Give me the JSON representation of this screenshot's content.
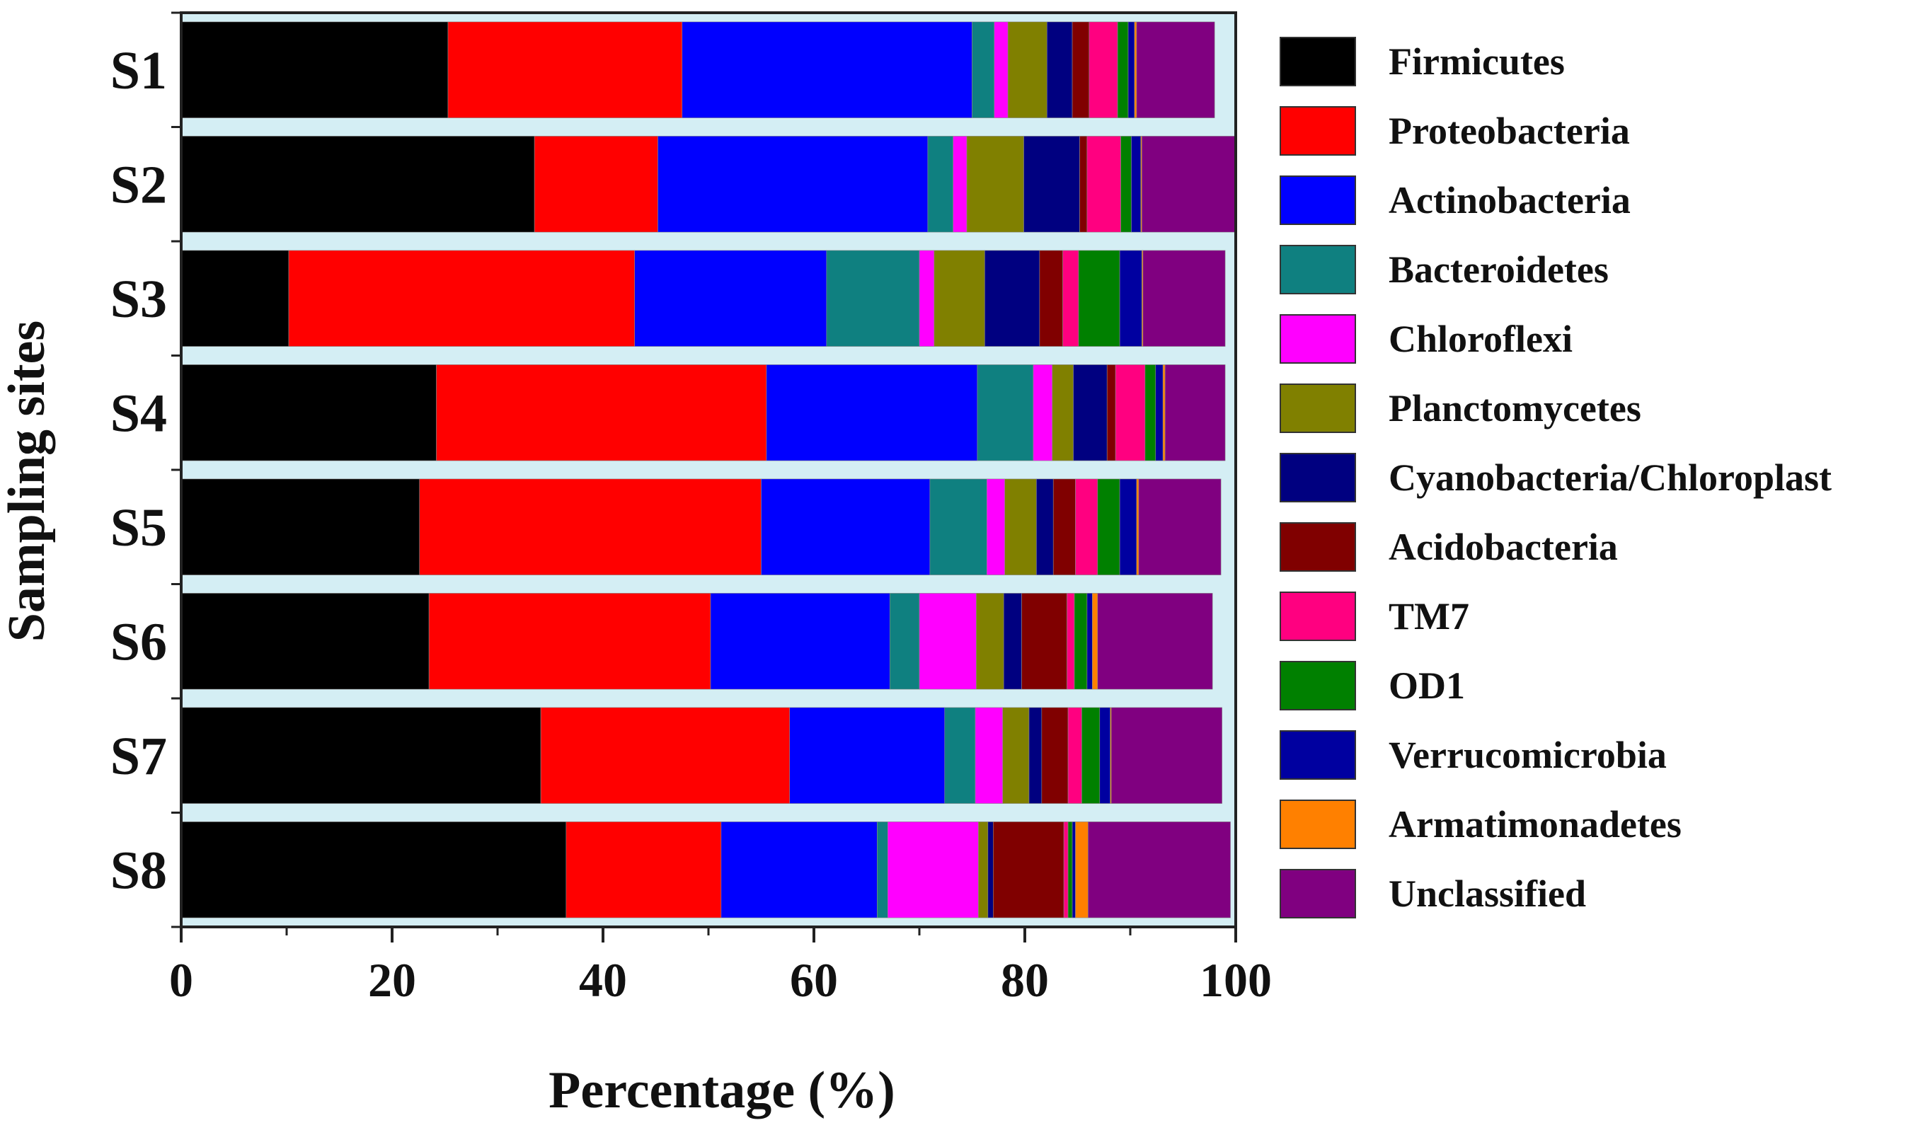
{
  "chart_data": {
    "type": "bar",
    "orientation": "horizontal",
    "stacked": true,
    "title": "",
    "xlabel": "Percentage (%)",
    "ylabel": "Sampling sites",
    "xlim": [
      0,
      100
    ],
    "xticks": [
      "0",
      "20",
      "40",
      "60",
      "80",
      "100"
    ],
    "categories": [
      "S1",
      "S2",
      "S3",
      "S4",
      "S5",
      "S6",
      "S7",
      "S8"
    ],
    "legend_position": "right",
    "gap_color": "#d4eef4",
    "series": [
      {
        "name": "Firmicutes",
        "color": "#000000",
        "values": [
          25.3,
          33.5,
          10.2,
          24.2,
          22.6,
          23.5,
          34.1,
          36.5
        ]
      },
      {
        "name": "Proteobacteria",
        "color": "#ff0000",
        "values": [
          22.2,
          11.7,
          32.8,
          31.3,
          32.4,
          26.7,
          23.6,
          14.7
        ]
      },
      {
        "name": "Actinobacteria",
        "color": "#0000ff",
        "values": [
          27.5,
          25.6,
          18.2,
          20.0,
          16.0,
          17.0,
          14.7,
          14.8
        ]
      },
      {
        "name": "Bacteroidetes",
        "color": "#0f8080",
        "values": [
          2.1,
          2.4,
          8.8,
          5.3,
          5.4,
          2.8,
          2.9,
          1.0
        ]
      },
      {
        "name": "Chloroflexi",
        "color": "#ff00ff",
        "values": [
          1.3,
          1.3,
          1.4,
          1.8,
          1.7,
          5.4,
          2.6,
          8.6
        ]
      },
      {
        "name": "Planctomycetes",
        "color": "#808000",
        "values": [
          3.7,
          5.4,
          4.8,
          2.0,
          3.0,
          2.6,
          2.5,
          0.9
        ]
      },
      {
        "name": "Cyanobacteria/Chloroplast",
        "color": "#000080",
        "values": [
          2.4,
          5.3,
          5.2,
          3.2,
          1.6,
          1.7,
          1.2,
          0.5
        ]
      },
      {
        "name": "Acidobacteria",
        "color": "#800000",
        "values": [
          1.6,
          0.7,
          2.2,
          0.8,
          2.1,
          4.3,
          2.5,
          6.7
        ]
      },
      {
        "name": "TM7",
        "color": "#ff0080",
        "values": [
          2.7,
          3.2,
          1.5,
          2.8,
          2.1,
          0.7,
          1.3,
          0.4
        ]
      },
      {
        "name": "OD1",
        "color": "#008000",
        "values": [
          1.0,
          1.0,
          3.9,
          1.0,
          2.1,
          1.2,
          1.7,
          0.4
        ]
      },
      {
        "name": "Verrucomicrobia",
        "color": "#0000a0",
        "values": [
          0.6,
          0.9,
          2.1,
          0.7,
          1.6,
          0.5,
          1.0,
          0.3
        ]
      },
      {
        "name": "Armatimonadetes",
        "color": "#ff8000",
        "values": [
          0.2,
          0.1,
          0.1,
          0.2,
          0.2,
          0.5,
          0.1,
          1.2
        ]
      },
      {
        "name": "Unclassified",
        "color": "#800080",
        "values": [
          7.4,
          8.9,
          7.8,
          5.7,
          7.8,
          10.9,
          10.5,
          13.5
        ]
      }
    ]
  }
}
